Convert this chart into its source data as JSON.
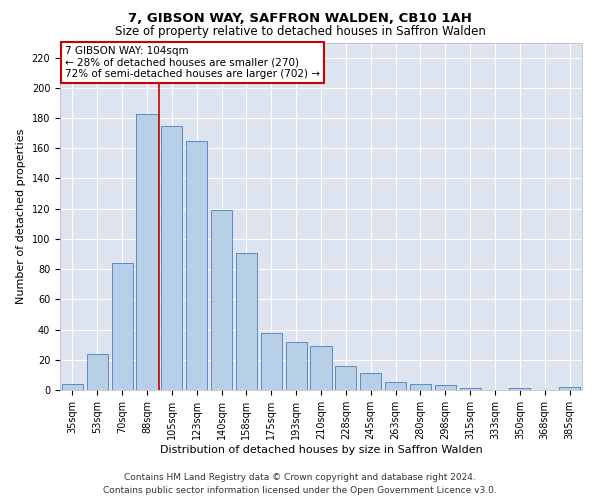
{
  "title1": "7, GIBSON WAY, SAFFRON WALDEN, CB10 1AH",
  "title2": "Size of property relative to detached houses in Saffron Walden",
  "xlabel": "Distribution of detached houses by size in Saffron Walden",
  "ylabel": "Number of detached properties",
  "categories": [
    "35sqm",
    "53sqm",
    "70sqm",
    "88sqm",
    "105sqm",
    "123sqm",
    "140sqm",
    "158sqm",
    "175sqm",
    "193sqm",
    "210sqm",
    "228sqm",
    "245sqm",
    "263sqm",
    "280sqm",
    "298sqm",
    "315sqm",
    "333sqm",
    "350sqm",
    "368sqm",
    "385sqm"
  ],
  "values": [
    4,
    24,
    84,
    183,
    175,
    165,
    119,
    91,
    38,
    32,
    29,
    16,
    11,
    5,
    4,
    3,
    1,
    0,
    1,
    0,
    2
  ],
  "bar_color": "#b8cfe8",
  "bar_edge_color": "#5a8ac6",
  "property_line_color": "#cc0000",
  "annotation_text": "7 GIBSON WAY: 104sqm\n← 28% of detached houses are smaller (270)\n72% of semi-detached houses are larger (702) →",
  "annotation_box_facecolor": "#ffffff",
  "annotation_box_edgecolor": "#cc0000",
  "ylim": [
    0,
    230
  ],
  "yticks": [
    0,
    20,
    40,
    60,
    80,
    100,
    120,
    140,
    160,
    180,
    200,
    220
  ],
  "background_color": "#dde4f0",
  "footer_line1": "Contains HM Land Registry data © Crown copyright and database right 2024.",
  "footer_line2": "Contains public sector information licensed under the Open Government Licence v3.0.",
  "title1_fontsize": 9.5,
  "title2_fontsize": 8.5,
  "xlabel_fontsize": 8,
  "ylabel_fontsize": 8,
  "tick_fontsize": 7,
  "annotation_fontsize": 7.5,
  "footer_fontsize": 6.5
}
